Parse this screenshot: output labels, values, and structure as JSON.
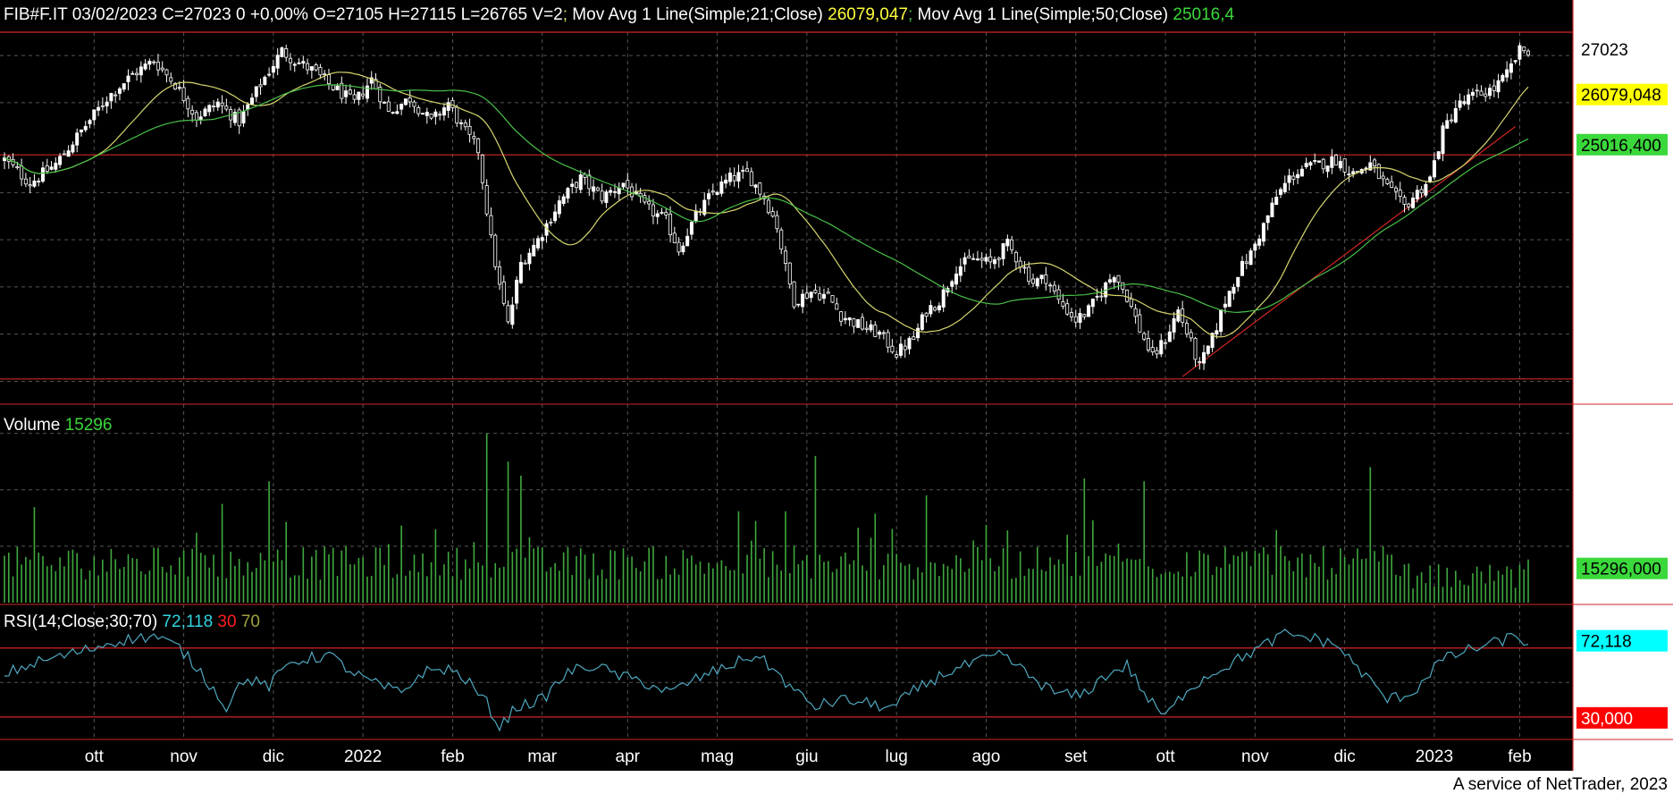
{
  "header": {
    "instrument": "FIB#F.IT 03/02/2023 C=27023 0 +0,00% O=27105 H=27115 L=26765 V=2",
    "sep1": ";",
    "ma21_label": " Mov Avg 1 Line(Simple;21;Close)",
    "ma21_value": " 26079,047",
    "sep2": ";",
    "ma50_label": " Mov Avg 1 Line(Simple;50;Close)",
    "ma50_value": " 25016,4"
  },
  "volume_header": {
    "label": "Volume",
    "value": " 15296"
  },
  "rsi_header": {
    "label": "RSI(14;Close;30;70)",
    "value": " 72,118",
    "low": " 30",
    "high": " 70"
  },
  "footer": "A service of NetTrader, 2023",
  "colors": {
    "background": "#000000",
    "text": "#ffffff",
    "candle": "#ffffff",
    "ma21": "#d6d66e",
    "ma50": "#48c048",
    "volume": "#3fa83f",
    "rsi": "#4fa8c0",
    "rsi_label": "#33d4e0",
    "level_line": "#d22626",
    "grid": "#555555",
    "axis_tag_price": "#ffffff",
    "axis_tag_ma21": "#ffff00",
    "axis_tag_ma50": "#3bd83b",
    "axis_tag_volume": "#3bd83b",
    "axis_tag_rsi": "#00ffff",
    "axis_tag_rsi_low": "#ff0000"
  },
  "chart_data": [
    {
      "panel": "price",
      "type": "candlestick",
      "x_labels": [
        "ott",
        "nov",
        "dic",
        "2022",
        "feb",
        "mar",
        "apr",
        "mag",
        "giu",
        "lug",
        "ago",
        "set",
        "ott",
        "nov",
        "dic",
        "2023",
        "feb"
      ],
      "y_ticks": [
        20000,
        21000,
        22000,
        23000,
        24000
      ],
      "y_range": [
        19800,
        27400
      ],
      "ohlc_keypoints": [
        [
          0,
          24700
        ],
        [
          6,
          24200
        ],
        [
          12,
          24600
        ],
        [
          18,
          25300
        ],
        [
          24,
          26000
        ],
        [
          30,
          26500
        ],
        [
          35,
          26800
        ],
        [
          40,
          26300
        ],
        [
          45,
          25600
        ],
        [
          50,
          25900
        ],
        [
          55,
          25500
        ],
        [
          60,
          26300
        ],
        [
          65,
          27000
        ],
        [
          68,
          26800
        ],
        [
          72,
          26600
        ],
        [
          76,
          26300
        ],
        [
          82,
          25900
        ],
        [
          86,
          26400
        ],
        [
          90,
          25700
        ],
        [
          95,
          26000
        ],
        [
          100,
          25500
        ],
        [
          104,
          25900
        ],
        [
          107,
          25400
        ],
        [
          111,
          24900
        ],
        [
          114,
          23000
        ],
        [
          116,
          22000
        ],
        [
          118,
          21200
        ],
        [
          121,
          22500
        ],
        [
          125,
          23000
        ],
        [
          130,
          23800
        ],
        [
          135,
          24300
        ],
        [
          140,
          23900
        ],
        [
          145,
          24200
        ],
        [
          150,
          23700
        ],
        [
          155,
          23400
        ],
        [
          158,
          22800
        ],
        [
          162,
          23500
        ],
        [
          166,
          24000
        ],
        [
          170,
          24300
        ],
        [
          174,
          24400
        ],
        [
          178,
          23900
        ],
        [
          181,
          23300
        ],
        [
          183,
          22400
        ],
        [
          185,
          21700
        ],
        [
          189,
          21900
        ],
        [
          193,
          21800
        ],
        [
          196,
          21400
        ],
        [
          200,
          21200
        ],
        [
          205,
          21000
        ],
        [
          209,
          20600
        ],
        [
          213,
          20900
        ],
        [
          216,
          21500
        ],
        [
          219,
          21700
        ],
        [
          223,
          22400
        ],
        [
          227,
          22600
        ],
        [
          231,
          22500
        ],
        [
          235,
          22900
        ],
        [
          238,
          22500
        ],
        [
          241,
          22100
        ],
        [
          244,
          22200
        ],
        [
          247,
          21700
        ],
        [
          251,
          21300
        ],
        [
          254,
          21500
        ],
        [
          257,
          21900
        ],
        [
          260,
          22300
        ],
        [
          263,
          21800
        ],
        [
          266,
          21100
        ],
        [
          269,
          20500
        ],
        [
          272,
          20900
        ],
        [
          275,
          21500
        ],
        [
          278,
          20800
        ],
        [
          280,
          20300
        ],
        [
          283,
          20900
        ],
        [
          286,
          21700
        ],
        [
          289,
          22300
        ],
        [
          292,
          22700
        ],
        [
          295,
          23300
        ],
        [
          298,
          23900
        ],
        [
          301,
          24300
        ],
        [
          304,
          24500
        ],
        [
          308,
          24600
        ],
        [
          312,
          24700
        ],
        [
          316,
          24400
        ],
        [
          320,
          24600
        ],
        [
          324,
          24100
        ],
        [
          328,
          23700
        ],
        [
          331,
          24000
        ],
        [
          334,
          24300
        ],
        [
          337,
          25300
        ],
        [
          340,
          25800
        ],
        [
          343,
          26000
        ],
        [
          346,
          26100
        ],
        [
          349,
          26200
        ],
        [
          352,
          26500
        ],
        [
          355,
          27000
        ],
        [
          357,
          27023
        ]
      ],
      "series": [
        {
          "name": "Mov Avg 1 Line(Simple;21;Close)",
          "last": 26079.047
        },
        {
          "name": "Mov Avg 1 Line(Simple;50;Close)",
          "last": 25016.4
        }
      ],
      "axis_tags": [
        "27023",
        "26079,048",
        "25016,400"
      ],
      "level_lines": [
        27400,
        24800,
        20050
      ],
      "trend_line": [
        [
          276,
          20100
        ],
        [
          354,
          25400
        ]
      ]
    },
    {
      "panel": "volume",
      "type": "bar",
      "y_ticks": [
        20000,
        40000,
        60000
      ],
      "y_range": [
        0,
        64000
      ],
      "spikes": [
        [
          51,
          35000
        ],
        [
          62,
          43000
        ],
        [
          113,
          60000
        ],
        [
          118,
          50000
        ],
        [
          121,
          45000
        ],
        [
          190,
          52000
        ],
        [
          216,
          38000
        ],
        [
          253,
          44000
        ],
        [
          267,
          43000
        ],
        [
          320,
          48000
        ]
      ],
      "axis_tag": "15296,000"
    },
    {
      "panel": "rsi",
      "type": "line",
      "y_ticks": [
        25,
        50
      ],
      "y_range": [
        18,
        88
      ],
      "keypoints": [
        [
          0,
          55
        ],
        [
          8,
          62
        ],
        [
          18,
          68
        ],
        [
          26,
          74
        ],
        [
          35,
          77
        ],
        [
          41,
          70
        ],
        [
          46,
          56
        ],
        [
          52,
          36
        ],
        [
          56,
          52
        ],
        [
          62,
          48
        ],
        [
          67,
          62
        ],
        [
          76,
          66
        ],
        [
          82,
          55
        ],
        [
          88,
          48
        ],
        [
          93,
          44
        ],
        [
          98,
          56
        ],
        [
          104,
          58
        ],
        [
          108,
          52
        ],
        [
          113,
          38
        ],
        [
          116,
          24
        ],
        [
          120,
          36
        ],
        [
          126,
          40
        ],
        [
          132,
          56
        ],
        [
          138,
          60
        ],
        [
          144,
          54
        ],
        [
          150,
          50
        ],
        [
          156,
          44
        ],
        [
          162,
          52
        ],
        [
          168,
          58
        ],
        [
          176,
          66
        ],
        [
          180,
          58
        ],
        [
          185,
          45
        ],
        [
          190,
          36
        ],
        [
          196,
          40
        ],
        [
          202,
          38
        ],
        [
          208,
          35
        ],
        [
          213,
          45
        ],
        [
          220,
          55
        ],
        [
          228,
          62
        ],
        [
          234,
          66
        ],
        [
          240,
          54
        ],
        [
          246,
          44
        ],
        [
          252,
          42
        ],
        [
          258,
          54
        ],
        [
          263,
          60
        ],
        [
          268,
          40
        ],
        [
          272,
          30
        ],
        [
          277,
          46
        ],
        [
          282,
          54
        ],
        [
          288,
          62
        ],
        [
          294,
          70
        ],
        [
          300,
          78
        ],
        [
          306,
          76
        ],
        [
          312,
          72
        ],
        [
          318,
          56
        ],
        [
          324,
          40
        ],
        [
          330,
          44
        ],
        [
          336,
          62
        ],
        [
          342,
          68
        ],
        [
          348,
          72
        ],
        [
          354,
          77
        ],
        [
          357,
          72.118
        ]
      ],
      "levels": [
        30,
        70
      ],
      "axis_tags": [
        "72,118",
        "30,000"
      ]
    }
  ]
}
